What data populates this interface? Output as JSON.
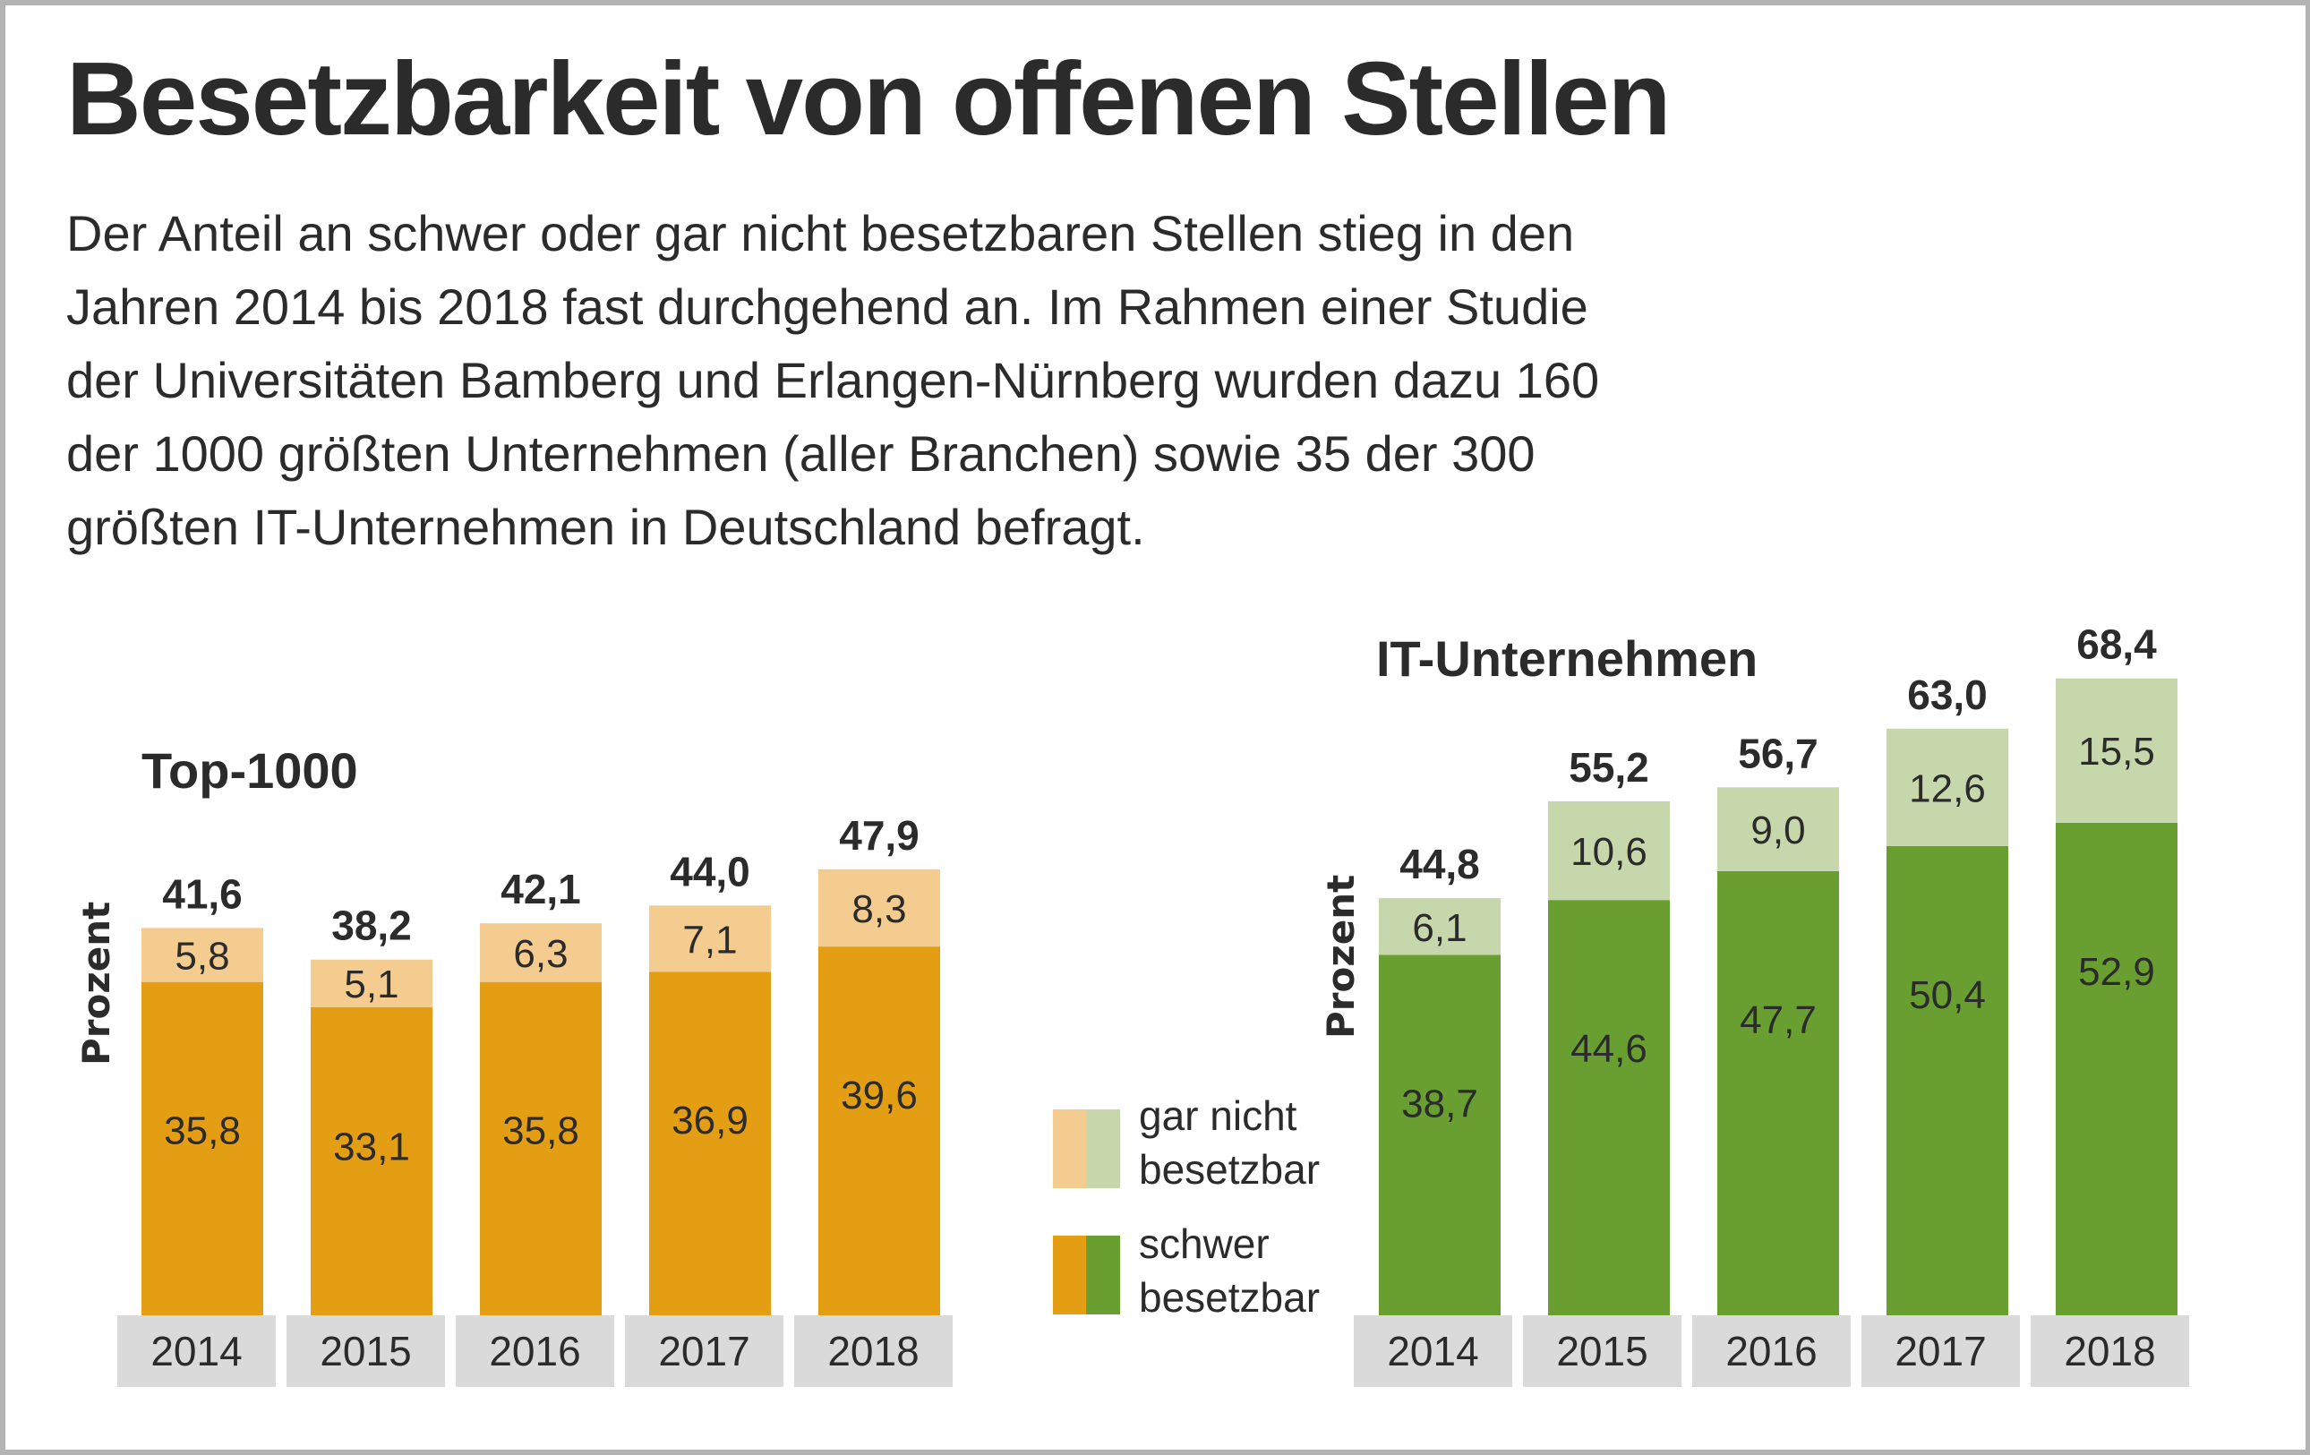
{
  "title": "Besetzbarkeit von offenen Stellen",
  "intro_lines": [
    "Der Anteil an schwer oder gar nicht besetzbaren Stellen stieg in den",
    "Jahren 2014 bis 2018 fast durchgehend an. Im Rahmen einer Studie",
    "der Universitäten Bamberg und Erlangen-Nürnberg wurden dazu 160",
    "der 1000 größten Unternehmen (aller Branchen) sowie 35 der 300",
    "größten IT-Unternehmen in Deutschland befragt."
  ],
  "legend": {
    "items": [
      {
        "label_line1": "gar nicht",
        "label_line2": "besetzbar",
        "colors": [
          "#f4cc8f",
          "#c6d8ab"
        ]
      },
      {
        "label_line1": "schwer",
        "label_line2": "besetzbar",
        "colors": [
          "#e49e13",
          "#689f30"
        ]
      }
    ]
  },
  "chart_data": [
    {
      "type": "bar",
      "stacked": true,
      "title": "Top-1000",
      "ylabel": "Prozent",
      "xlabel": "",
      "categories": [
        "2014",
        "2015",
        "2016",
        "2017",
        "2018"
      ],
      "series": [
        {
          "name": "schwer besetzbar",
          "color": "#e49e13",
          "values": [
            35.8,
            33.1,
            35.8,
            36.9,
            39.6
          ],
          "labels": [
            "35,8",
            "33,1",
            "35,8",
            "36,9",
            "39,6"
          ]
        },
        {
          "name": "gar nicht besetzbar",
          "color": "#f4cc8f",
          "values": [
            5.8,
            5.1,
            6.3,
            7.1,
            8.3
          ],
          "labels": [
            "5,8",
            "5,1",
            "6,3",
            "7,1",
            "8,3"
          ]
        }
      ],
      "totals": [
        41.6,
        38.2,
        42.1,
        44.0,
        47.9
      ],
      "total_labels": [
        "41,6",
        "38,2",
        "42,1",
        "44,0",
        "47,9"
      ],
      "grid": false
    },
    {
      "type": "bar",
      "stacked": true,
      "title": "IT-Unternehmen",
      "ylabel": "Prozent",
      "xlabel": "",
      "categories": [
        "2014",
        "2015",
        "2016",
        "2017",
        "2018"
      ],
      "series": [
        {
          "name": "schwer besetzbar",
          "color": "#689f30",
          "values": [
            38.7,
            44.6,
            47.7,
            50.4,
            52.9
          ],
          "labels": [
            "38,7",
            "44,6",
            "47,7",
            "50,4",
            "52,9"
          ]
        },
        {
          "name": "gar nicht besetzbar",
          "color": "#c6d8ab",
          "values": [
            6.1,
            10.6,
            9.0,
            12.6,
            15.5
          ],
          "labels": [
            "6,1",
            "10,6",
            "9,0",
            "12,6",
            "15,5"
          ]
        }
      ],
      "totals": [
        44.8,
        55.2,
        56.7,
        63.0,
        68.4
      ],
      "total_labels": [
        "44,8",
        "55,2",
        "56,7",
        "63,0",
        "68,4"
      ],
      "grid": false
    }
  ],
  "colors": {
    "year_box": "#dadada",
    "text": "#2b2b2b",
    "frame": "#b3b3b3"
  }
}
